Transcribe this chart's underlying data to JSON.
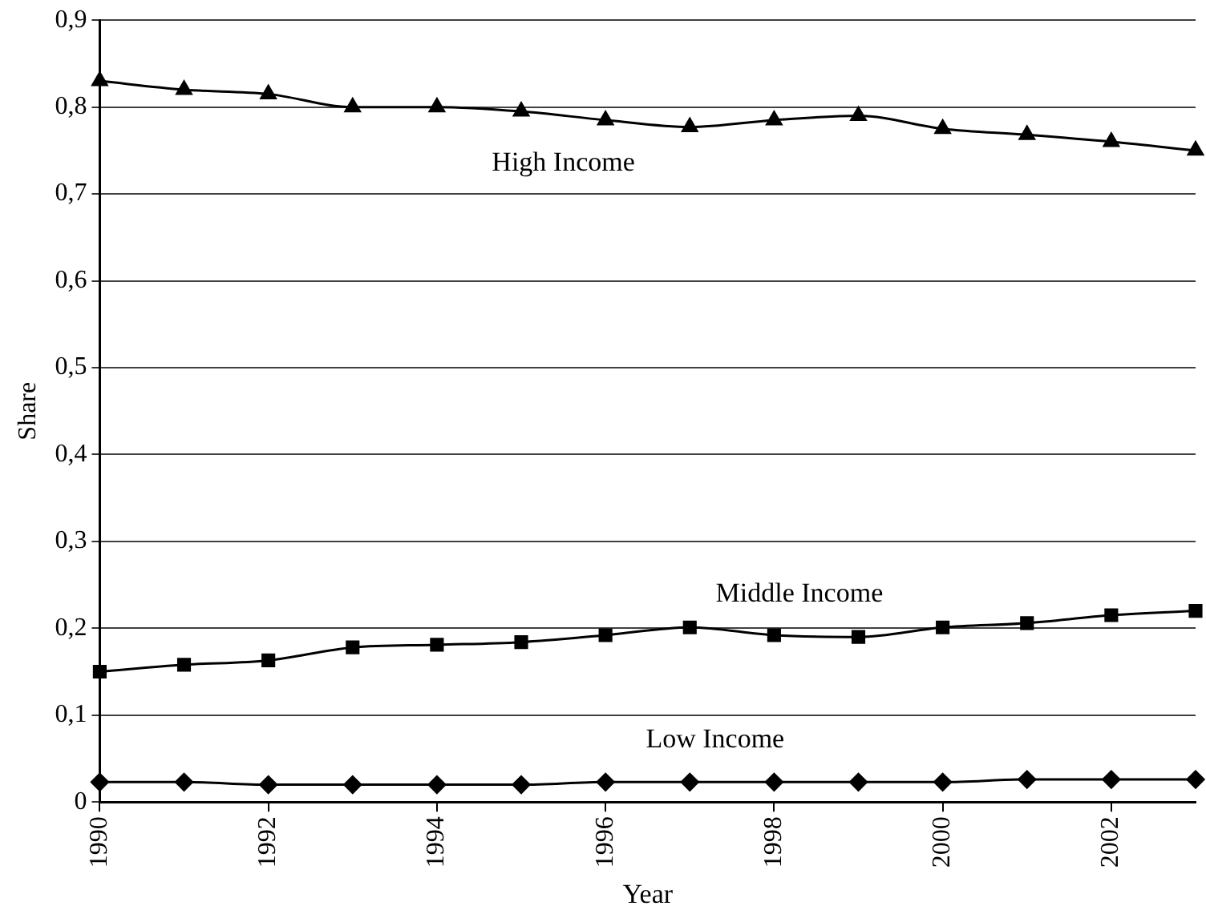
{
  "chart_data": {
    "type": "line",
    "xlabel": "Year",
    "ylabel": "Share",
    "x": [
      1990,
      1991,
      1992,
      1993,
      1994,
      1995,
      1996,
      1997,
      1998,
      1999,
      2000,
      2001,
      2002,
      2003
    ],
    "xlim": [
      1990,
      2003
    ],
    "xticks": [
      1990,
      1992,
      1994,
      1996,
      1998,
      2000,
      2002
    ],
    "ylim": [
      0,
      0.9
    ],
    "yticks": [
      {
        "value": 0,
        "label": "0"
      },
      {
        "value": 0.1,
        "label": "0,1"
      },
      {
        "value": 0.2,
        "label": "0,2"
      },
      {
        "value": 0.3,
        "label": "0,3"
      },
      {
        "value": 0.4,
        "label": "0,4"
      },
      {
        "value": 0.5,
        "label": "0,5"
      },
      {
        "value": 0.6,
        "label": "0,6"
      },
      {
        "value": 0.7,
        "label": "0,7"
      },
      {
        "value": 0.8,
        "label": "0,8"
      },
      {
        "value": 0.9,
        "label": "0,9"
      }
    ],
    "grid": "y",
    "legend": false,
    "line_style": "solid",
    "series": [
      {
        "name": "High Income",
        "color": "#000000",
        "marker": "triangle",
        "values": [
          0.83,
          0.82,
          0.815,
          0.8,
          0.8,
          0.795,
          0.785,
          0.777,
          0.785,
          0.79,
          0.775,
          0.768,
          0.76,
          0.75
        ]
      },
      {
        "name": "Middle Income",
        "color": "#000000",
        "marker": "square",
        "values": [
          0.15,
          0.158,
          0.163,
          0.178,
          0.181,
          0.184,
          0.192,
          0.201,
          0.192,
          0.19,
          0.201,
          0.206,
          0.215,
          0.22
        ]
      },
      {
        "name": "Low Income",
        "color": "#000000",
        "marker": "diamond",
        "values": [
          0.023,
          0.023,
          0.02,
          0.02,
          0.02,
          0.02,
          0.023,
          0.023,
          0.023,
          0.023,
          0.023,
          0.026,
          0.026,
          0.026
        ]
      }
    ]
  }
}
